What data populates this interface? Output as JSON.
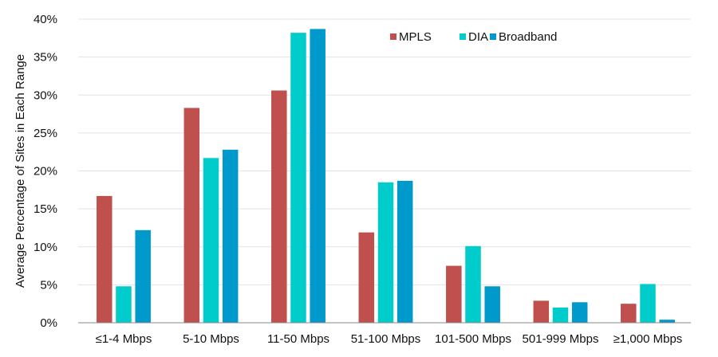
{
  "chart_data": {
    "type": "bar",
    "title": "",
    "xlabel": "",
    "ylabel": "Average Percentage of Sites in Each Range",
    "ylim": [
      0,
      40
    ],
    "yticks": [
      "0%",
      "5%",
      "10%",
      "15%",
      "20%",
      "25%",
      "30%",
      "35%",
      "40%"
    ],
    "ytick_values": [
      0,
      5,
      10,
      15,
      20,
      25,
      30,
      35,
      40
    ],
    "grid": true,
    "legend_position": "top-right",
    "categories": [
      "≤1-4 Mbps",
      "5-10 Mbps",
      "11-50 Mbps",
      "51-100 Mbps",
      "101-500 Mbps",
      "501-999 Mbps",
      "≥1,000 Mbps"
    ],
    "series": [
      {
        "name": "MPLS",
        "color": "#c0504d",
        "values": [
          16.7,
          28.3,
          30.6,
          11.9,
          7.5,
          2.9,
          2.5
        ]
      },
      {
        "name": "DIA",
        "color": "#00cccc",
        "values": [
          4.8,
          21.7,
          38.2,
          18.5,
          10.1,
          2.0,
          5.1
        ]
      },
      {
        "name": "Broadband",
        "color": "#0099cc",
        "values": [
          12.2,
          22.8,
          38.7,
          18.7,
          4.8,
          2.7,
          0.4
        ]
      }
    ]
  }
}
